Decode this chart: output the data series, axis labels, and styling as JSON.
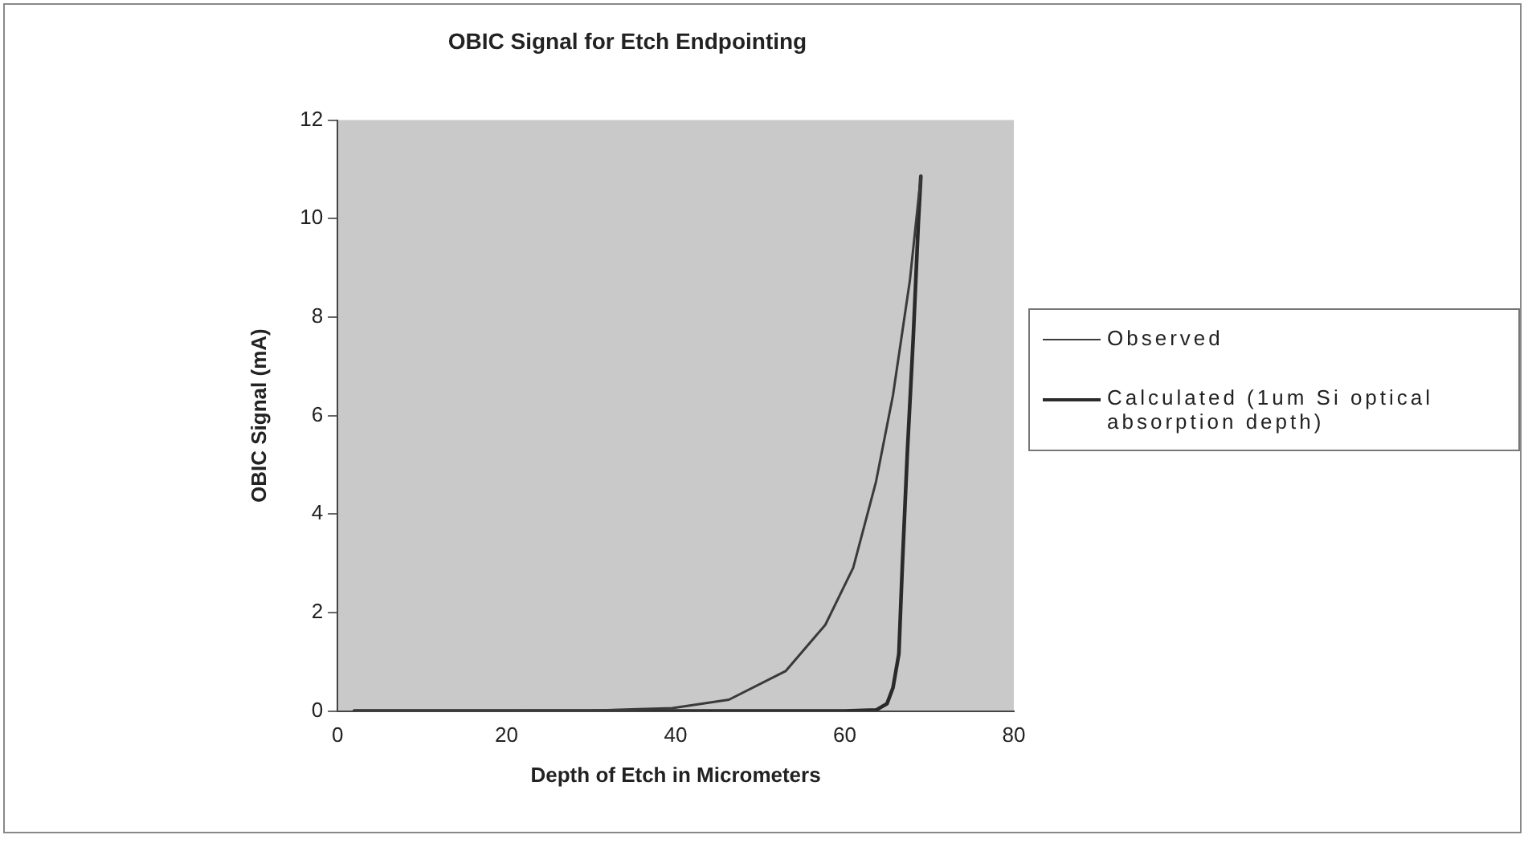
{
  "chart_data": {
    "type": "line",
    "title": "OBIC Signal for Etch Endpointing",
    "xlabel": "Depth of Etch in Micrometers",
    "ylabel": "OBIC Signal (mA)",
    "xlim": [
      0,
      80
    ],
    "xticks": [
      0,
      20,
      40,
      60,
      80
    ],
    "ylim": [
      0,
      12
    ],
    "yticks": [
      0,
      2,
      4,
      6,
      8,
      10,
      12
    ],
    "grid": false,
    "legend": "right",
    "marker": "none",
    "line_style": "solid",
    "series": [
      {
        "name": "Observed",
        "color": "#3a3a3a",
        "x": [
          2,
          10,
          20,
          30,
          39.6,
          46.3,
          53,
          57.7,
          61,
          63.7,
          65.7,
          67.7,
          69
        ],
        "values": [
          0,
          0,
          0,
          0.01,
          0.06,
          0.23,
          0.81,
          1.75,
          2.91,
          4.66,
          6.41,
          8.74,
          10.86
        ]
      },
      {
        "name": "Calculated (1um Si optical absorption depth)",
        "color": "#2a2a2a",
        "x": [
          2,
          20,
          40,
          60,
          63.7,
          65,
          65.7,
          66.4,
          66.8,
          67.4,
          68.1,
          68.7,
          69
        ],
        "values": [
          0,
          0,
          0,
          0,
          0.02,
          0.15,
          0.47,
          1.16,
          2.91,
          5.24,
          7.58,
          9.9,
          10.86
        ]
      }
    ]
  }
}
